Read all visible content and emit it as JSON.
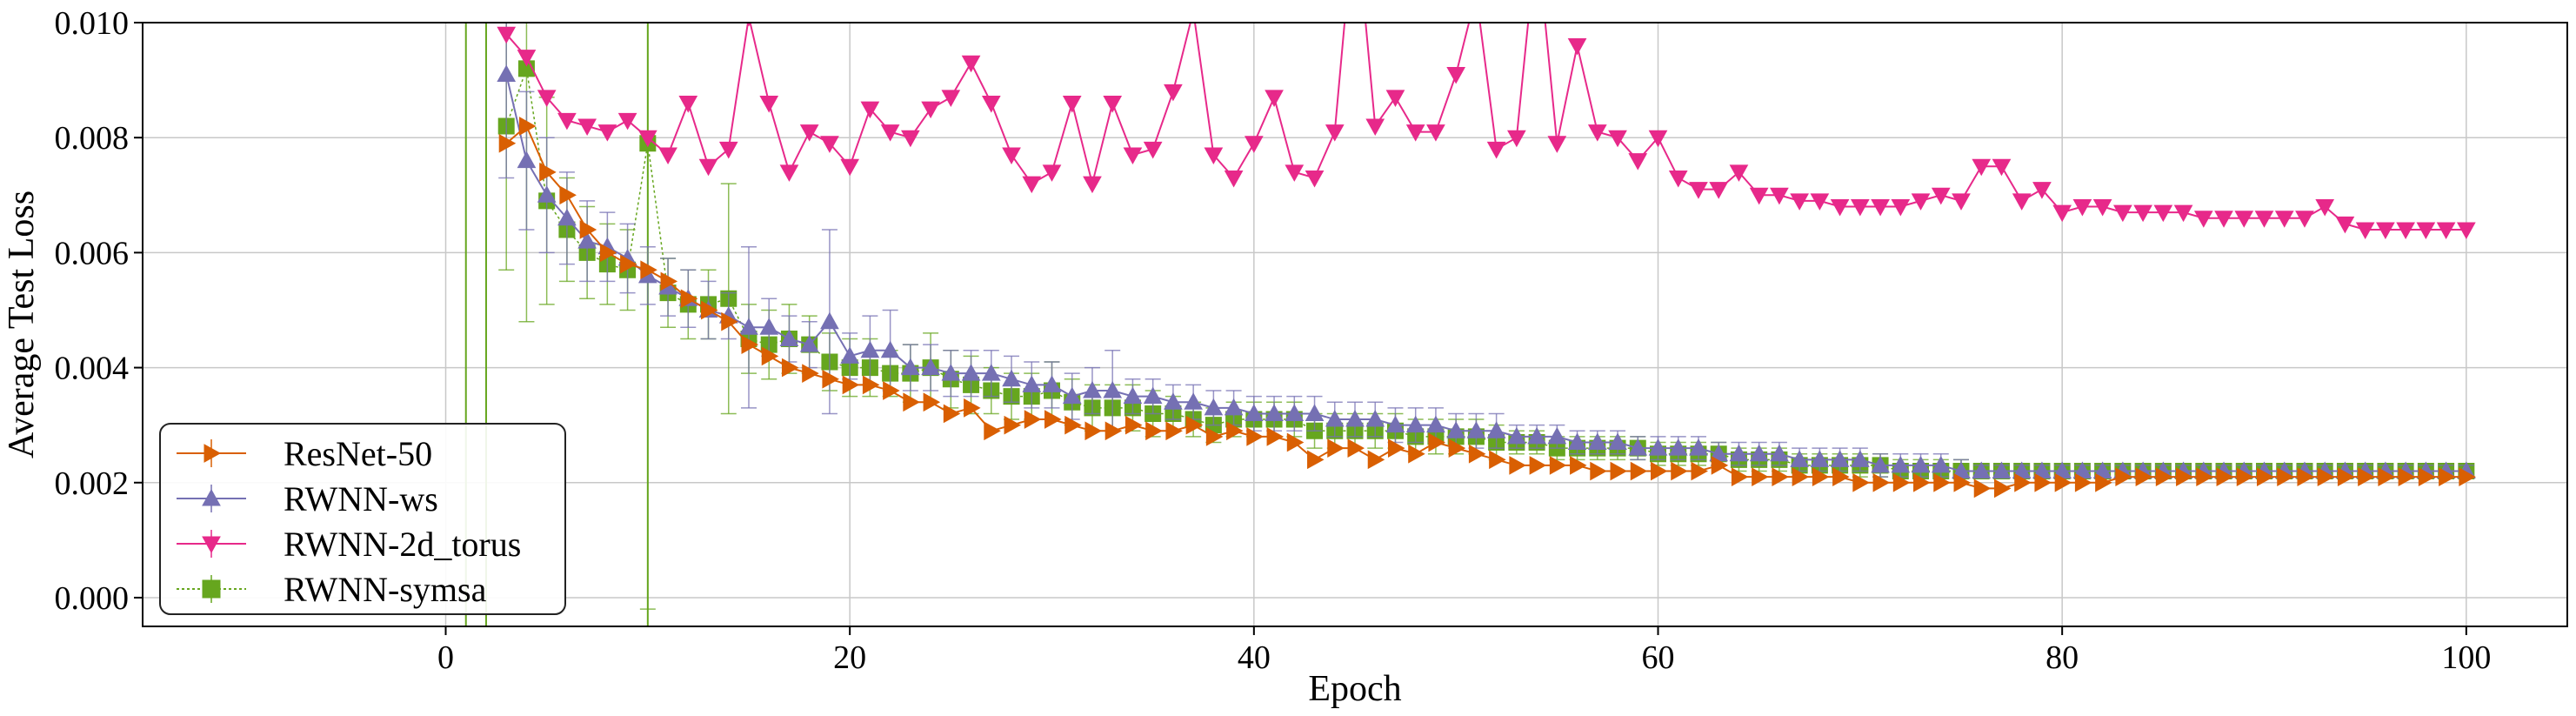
{
  "chart_data": {
    "type": "line",
    "title": "",
    "xlabel": "Epoch",
    "ylabel": "Average Test Loss",
    "xlim": [
      -15,
      105
    ],
    "ylim": [
      -0.0005,
      0.01
    ],
    "xticks": [
      "0",
      "20",
      "40",
      "60",
      "80",
      "100"
    ],
    "yticks": [
      "0.000",
      "0.002",
      "0.004",
      "0.006",
      "0.008",
      "0.010"
    ],
    "grid": true,
    "legend_position": "lower-left",
    "series": [
      {
        "name": "ResNet-50",
        "color": "#d95f02",
        "marker": "triangle-right",
        "x": [
          3,
          4,
          5,
          6,
          7,
          8,
          9,
          10,
          11,
          12,
          13,
          14,
          15,
          16,
          17,
          18,
          19,
          20,
          21,
          22,
          23,
          24,
          25,
          26,
          27,
          28,
          29,
          30,
          31,
          32,
          33,
          34,
          35,
          36,
          37,
          38,
          39,
          40,
          41,
          42,
          43,
          44,
          45,
          46,
          47,
          48,
          49,
          50,
          51,
          52,
          53,
          54,
          55,
          56,
          57,
          58,
          59,
          60,
          61,
          62,
          63,
          64,
          65,
          66,
          67,
          68,
          69,
          70,
          71,
          72,
          73,
          74,
          75,
          76,
          77,
          78,
          79,
          80,
          81,
          82,
          83,
          84,
          85,
          86,
          87,
          88,
          89,
          90,
          91,
          92,
          93,
          94,
          95,
          96,
          97,
          98,
          99,
          100
        ],
        "y": [
          0.0079,
          0.0082,
          0.0074,
          0.007,
          0.0064,
          0.006,
          0.0058,
          0.0057,
          0.0055,
          0.0052,
          0.005,
          0.0048,
          0.0044,
          0.0042,
          0.004,
          0.0039,
          0.0038,
          0.0037,
          0.0037,
          0.0036,
          0.0034,
          0.0034,
          0.0032,
          0.0033,
          0.0029,
          0.003,
          0.0031,
          0.0031,
          0.003,
          0.0029,
          0.0029,
          0.003,
          0.0029,
          0.0029,
          0.003,
          0.0028,
          0.0029,
          0.0028,
          0.0028,
          0.0027,
          0.0024,
          0.0026,
          0.0026,
          0.0024,
          0.0026,
          0.0025,
          0.0027,
          0.0026,
          0.0025,
          0.0024,
          0.0023,
          0.0023,
          0.0023,
          0.0023,
          0.0022,
          0.0022,
          0.0022,
          0.0022,
          0.0022,
          0.0022,
          0.0023,
          0.0021,
          0.0021,
          0.0021,
          0.0021,
          0.0021,
          0.0021,
          0.002,
          0.002,
          0.002,
          0.002,
          0.002,
          0.002,
          0.0019,
          0.0019,
          0.002,
          0.002,
          0.002,
          0.002,
          0.002,
          0.0021,
          0.0021,
          0.0021,
          0.0021,
          0.0021,
          0.0021,
          0.0021,
          0.0021,
          0.0021,
          0.0021,
          0.0021,
          0.0021,
          0.0021,
          0.0021,
          0.0021,
          0.0021,
          0.0021,
          0.0021
        ]
      },
      {
        "name": "RWNN-ws",
        "color": "#7570b3",
        "marker": "triangle-up",
        "x": [
          3,
          4,
          5,
          6,
          7,
          8,
          9,
          10,
          11,
          12,
          13,
          14,
          15,
          16,
          17,
          18,
          19,
          20,
          21,
          22,
          23,
          24,
          25,
          26,
          27,
          28,
          29,
          30,
          31,
          32,
          33,
          34,
          35,
          36,
          37,
          38,
          39,
          40,
          41,
          42,
          43,
          44,
          45,
          46,
          47,
          48,
          49,
          50,
          51,
          52,
          53,
          54,
          55,
          56,
          57,
          58,
          59,
          60,
          61,
          62,
          63,
          64,
          65,
          66,
          67,
          68,
          69,
          70,
          71,
          72,
          73,
          74,
          75,
          76,
          77,
          78,
          79,
          80,
          81,
          82,
          83,
          84,
          85,
          86,
          87,
          88,
          89,
          90,
          91,
          92,
          93,
          94,
          95,
          96,
          97,
          98,
          99,
          100
        ],
        "y": [
          0.0091,
          0.0076,
          0.007,
          0.0066,
          0.0062,
          0.0061,
          0.0059,
          0.0056,
          0.0054,
          0.0052,
          0.005,
          0.0049,
          0.0047,
          0.0047,
          0.0045,
          0.0044,
          0.0048,
          0.0042,
          0.0043,
          0.0043,
          0.004,
          0.004,
          0.0039,
          0.0039,
          0.0039,
          0.0038,
          0.0037,
          0.0037,
          0.0035,
          0.0036,
          0.0036,
          0.0035,
          0.0035,
          0.0034,
          0.0034,
          0.0033,
          0.0033,
          0.0032,
          0.0032,
          0.0032,
          0.0032,
          0.0031,
          0.0031,
          0.0031,
          0.003,
          0.003,
          0.003,
          0.0029,
          0.0029,
          0.0029,
          0.0028,
          0.0028,
          0.0028,
          0.0027,
          0.0027,
          0.0027,
          0.0026,
          0.0026,
          0.0026,
          0.0026,
          0.0025,
          0.0025,
          0.0025,
          0.0025,
          0.0024,
          0.0024,
          0.0024,
          0.0024,
          0.0023,
          0.0023,
          0.0023,
          0.0023,
          0.0022,
          0.0022,
          0.0022,
          0.0022,
          0.0022,
          0.0022,
          0.0022,
          0.0022,
          0.0022,
          0.0022,
          0.0022,
          0.0022,
          0.0022,
          0.0022,
          0.0022,
          0.0022,
          0.0022,
          0.0022,
          0.0022,
          0.0022,
          0.0022,
          0.0022,
          0.0022,
          0.0022,
          0.0022,
          0.0022
        ],
        "err": [
          0.0018,
          0.0012,
          0.001,
          0.0008,
          0.0007,
          0.0006,
          0.0006,
          0.0005,
          0.0005,
          0.0005,
          0.0005,
          0.0004,
          0.0014,
          0.0005,
          0.0004,
          0.0004,
          0.0016,
          0.0004,
          0.0006,
          0.0007,
          0.0004,
          0.0004,
          0.0004,
          0.0004,
          0.0004,
          0.0004,
          0.0004,
          0.0004,
          0.0004,
          0.0004,
          0.0007,
          0.0003,
          0.0003,
          0.0003,
          0.0003,
          0.0003,
          0.0003,
          0.0003,
          0.0003,
          0.0003,
          0.0003,
          0.0003,
          0.0003,
          0.0003,
          0.0003,
          0.0003,
          0.0003,
          0.0003,
          0.0003,
          0.0003,
          0.0002,
          0.0002,
          0.0002,
          0.0002,
          0.0002,
          0.0002,
          0.0002,
          0.0002,
          0.0002,
          0.0002,
          0.0002,
          0.0002,
          0.0002,
          0.0002,
          0.0002,
          0.0002,
          0.0002,
          0.0002,
          0.0002,
          0.0002,
          0.0002,
          0.0002,
          0.0002,
          0.0001,
          0.0001,
          0.0001,
          0.0001,
          0.0001,
          0.0001,
          0.0001,
          0.0001,
          0.0001,
          0.0001,
          0.0001,
          0.0001,
          0.0001,
          0.0001,
          0.0001,
          0.0001,
          0.0001,
          0.0001,
          0.0001,
          0.0001,
          0.0001,
          0.0001,
          0.0001,
          0.0001,
          0.0001
        ]
      },
      {
        "name": "RWNN-2d_torus",
        "color": "#e7298a",
        "marker": "triangle-down",
        "x": [
          3,
          4,
          5,
          6,
          7,
          8,
          9,
          10,
          11,
          12,
          13,
          14,
          15,
          16,
          17,
          18,
          19,
          20,
          21,
          22,
          23,
          24,
          25,
          26,
          27,
          28,
          29,
          30,
          31,
          32,
          33,
          34,
          35,
          36,
          37,
          38,
          39,
          40,
          41,
          42,
          43,
          44,
          45,
          46,
          47,
          48,
          49,
          50,
          51,
          52,
          53,
          54,
          55,
          56,
          57,
          58,
          59,
          60,
          61,
          62,
          63,
          64,
          65,
          66,
          67,
          68,
          69,
          70,
          71,
          72,
          73,
          74,
          75,
          76,
          77,
          78,
          79,
          80,
          81,
          82,
          83,
          84,
          85,
          86,
          87,
          88,
          89,
          90,
          91,
          92,
          93,
          94,
          95,
          96,
          97,
          98,
          99,
          100
        ],
        "y": [
          0.0098,
          0.0094,
          0.0087,
          0.0083,
          0.0082,
          0.0081,
          0.0083,
          0.008,
          0.0077,
          0.0086,
          0.0075,
          0.0078,
          0.0101,
          0.0086,
          0.0074,
          0.0081,
          0.0079,
          0.0075,
          0.0085,
          0.0081,
          0.008,
          0.0085,
          0.0087,
          0.0093,
          0.0086,
          0.0077,
          0.0072,
          0.0074,
          0.0086,
          0.0072,
          0.0086,
          0.0077,
          0.0078,
          0.0088,
          0.0102,
          0.0077,
          0.0073,
          0.0079,
          0.0087,
          0.0074,
          0.0073,
          0.0081,
          0.012,
          0.0082,
          0.0087,
          0.0081,
          0.0081,
          0.0091,
          0.0105,
          0.0078,
          0.008,
          0.0115,
          0.0079,
          0.0096,
          0.0081,
          0.008,
          0.0076,
          0.008,
          0.0073,
          0.0071,
          0.0071,
          0.0074,
          0.007,
          0.007,
          0.0069,
          0.0069,
          0.0068,
          0.0068,
          0.0068,
          0.0068,
          0.0069,
          0.007,
          0.0069,
          0.0075,
          0.0075,
          0.0069,
          0.0071,
          0.0067,
          0.0068,
          0.0068,
          0.0067,
          0.0067,
          0.0067,
          0.0067,
          0.0066,
          0.0066,
          0.0066,
          0.0066,
          0.0066,
          0.0066,
          0.0068,
          0.0065,
          0.0064,
          0.0064,
          0.0064,
          0.0064,
          0.0064,
          0.0064
        ]
      },
      {
        "name": "RWNN-symsa",
        "color": "#66a61e",
        "marker": "square",
        "x": [
          3,
          4,
          5,
          6,
          7,
          8,
          9,
          10,
          11,
          12,
          13,
          14,
          15,
          16,
          17,
          18,
          19,
          20,
          21,
          22,
          23,
          24,
          25,
          26,
          27,
          28,
          29,
          30,
          31,
          32,
          33,
          34,
          35,
          36,
          37,
          38,
          39,
          40,
          41,
          42,
          43,
          44,
          45,
          46,
          47,
          48,
          49,
          50,
          51,
          52,
          53,
          54,
          55,
          56,
          57,
          58,
          59,
          60,
          61,
          62,
          63,
          64,
          65,
          66,
          67,
          68,
          69,
          70,
          71,
          72,
          73,
          74,
          75,
          76,
          77,
          78,
          79,
          80,
          81,
          82,
          83,
          84,
          85,
          86,
          87,
          88,
          89,
          90,
          91,
          92,
          93,
          94,
          95,
          96,
          97,
          98,
          99,
          100
        ],
        "y": [
          0.0082,
          0.0092,
          0.0069,
          0.0064,
          0.006,
          0.0058,
          0.0057,
          0.0079,
          0.0053,
          0.0051,
          0.0051,
          0.0052,
          0.0045,
          0.0044,
          0.0045,
          0.0044,
          0.0041,
          0.004,
          0.004,
          0.0039,
          0.0039,
          0.004,
          0.0038,
          0.0037,
          0.0036,
          0.0035,
          0.0035,
          0.0036,
          0.0034,
          0.0033,
          0.0033,
          0.0033,
          0.0032,
          0.0032,
          0.0031,
          0.003,
          0.0031,
          0.0031,
          0.0031,
          0.0031,
          0.0029,
          0.0029,
          0.0029,
          0.0029,
          0.0029,
          0.0028,
          0.0028,
          0.0028,
          0.0028,
          0.0027,
          0.0027,
          0.0027,
          0.0026,
          0.0026,
          0.0026,
          0.0026,
          0.0026,
          0.0025,
          0.0025,
          0.0025,
          0.0025,
          0.0024,
          0.0024,
          0.0024,
          0.0023,
          0.0023,
          0.0023,
          0.0023,
          0.0023,
          0.0022,
          0.0022,
          0.0022,
          0.0022,
          0.0022,
          0.0022,
          0.0022,
          0.0022,
          0.0022,
          0.0022,
          0.0022,
          0.0022,
          0.0022,
          0.0022,
          0.0022,
          0.0022,
          0.0022,
          0.0022,
          0.0022,
          0.0022,
          0.0022,
          0.0022,
          0.0022,
          0.0022,
          0.0022,
          0.0022,
          0.0022,
          0.0022,
          0.0022
        ],
        "err": [
          0.0025,
          0.0044,
          0.0018,
          0.0009,
          0.0008,
          0.0007,
          0.0007,
          0.0081,
          0.0006,
          0.0006,
          0.0006,
          0.002,
          0.0006,
          0.0006,
          0.0006,
          0.0005,
          0.0005,
          0.0005,
          0.0005,
          0.0004,
          0.0005,
          0.0006,
          0.0005,
          0.0005,
          0.0004,
          0.0004,
          0.0004,
          0.0005,
          0.0004,
          0.0004,
          0.0004,
          0.0004,
          0.0004,
          0.0003,
          0.0003,
          0.0003,
          0.0003,
          0.0003,
          0.0003,
          0.0003,
          0.0003,
          0.0003,
          0.0003,
          0.0003,
          0.0003,
          0.0003,
          0.0003,
          0.0003,
          0.0003,
          0.0003,
          0.0002,
          0.0002,
          0.0002,
          0.0002,
          0.0002,
          0.0002,
          0.0002,
          0.0002,
          0.0002,
          0.0002,
          0.0002,
          0.0002,
          0.0002,
          0.0002,
          0.0002,
          0.0002,
          0.0002,
          0.0002,
          0.0002,
          0.0002,
          0.0002,
          0.0002,
          0.0002,
          0.0001,
          0.0001,
          0.0001,
          0.0001,
          0.0001,
          0.0001,
          0.0001,
          0.0001,
          0.0001,
          0.0001,
          0.0001,
          0.0001,
          0.0001,
          0.0001,
          0.0001,
          0.0001,
          0.0001,
          0.0001,
          0.0001,
          0.0001,
          0.0001,
          0.0001,
          0.0001,
          0.0001,
          0.0001
        ]
      }
    ],
    "vertical_lines": [
      {
        "x": 1,
        "color": "#66a61e"
      },
      {
        "x": 2,
        "color": "#66a61e"
      },
      {
        "x": 10,
        "color": "#66a61e"
      }
    ]
  }
}
